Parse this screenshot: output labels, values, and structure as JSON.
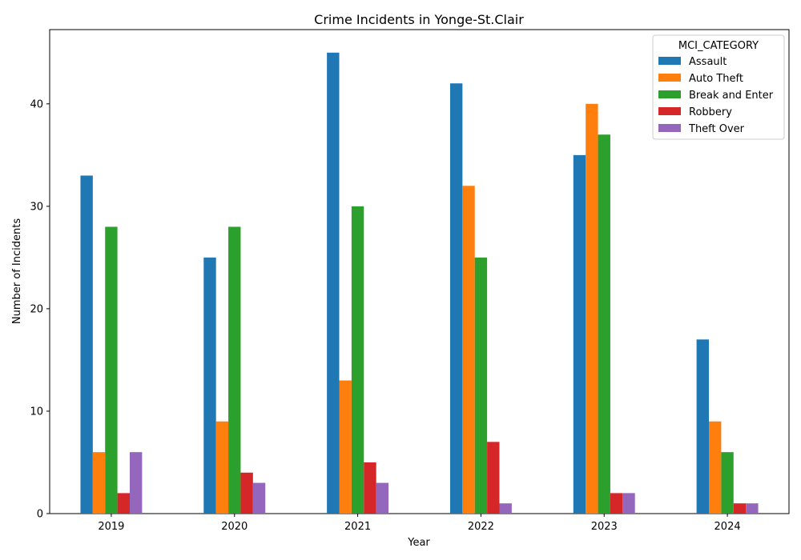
{
  "chart_data": {
    "type": "bar",
    "title": "Crime Incidents in Yonge-St.Clair",
    "xlabel": "Year",
    "ylabel": "Number of Incidents",
    "categories": [
      "2019",
      "2020",
      "2021",
      "2022",
      "2023",
      "2024"
    ],
    "ylim": [
      0,
      47.25
    ],
    "yticks": [
      0,
      10,
      20,
      30,
      40
    ],
    "grid": false,
    "legend": {
      "title": "MCI_CATEGORY",
      "placement": "top-right"
    },
    "series": [
      {
        "name": "Assault",
        "color": "#1f77b4",
        "values": [
          33,
          25,
          45,
          42,
          35,
          17
        ]
      },
      {
        "name": "Auto Theft",
        "color": "#ff7f0e",
        "values": [
          6,
          9,
          13,
          32,
          40,
          9
        ]
      },
      {
        "name": "Break and Enter",
        "color": "#2ca02c",
        "values": [
          28,
          28,
          30,
          25,
          37,
          6
        ]
      },
      {
        "name": "Robbery",
        "color": "#d62728",
        "values": [
          2,
          4,
          5,
          7,
          2,
          1
        ]
      },
      {
        "name": "Theft Over",
        "color": "#9467bd",
        "values": [
          6,
          3,
          3,
          1,
          2,
          1
        ]
      }
    ]
  }
}
